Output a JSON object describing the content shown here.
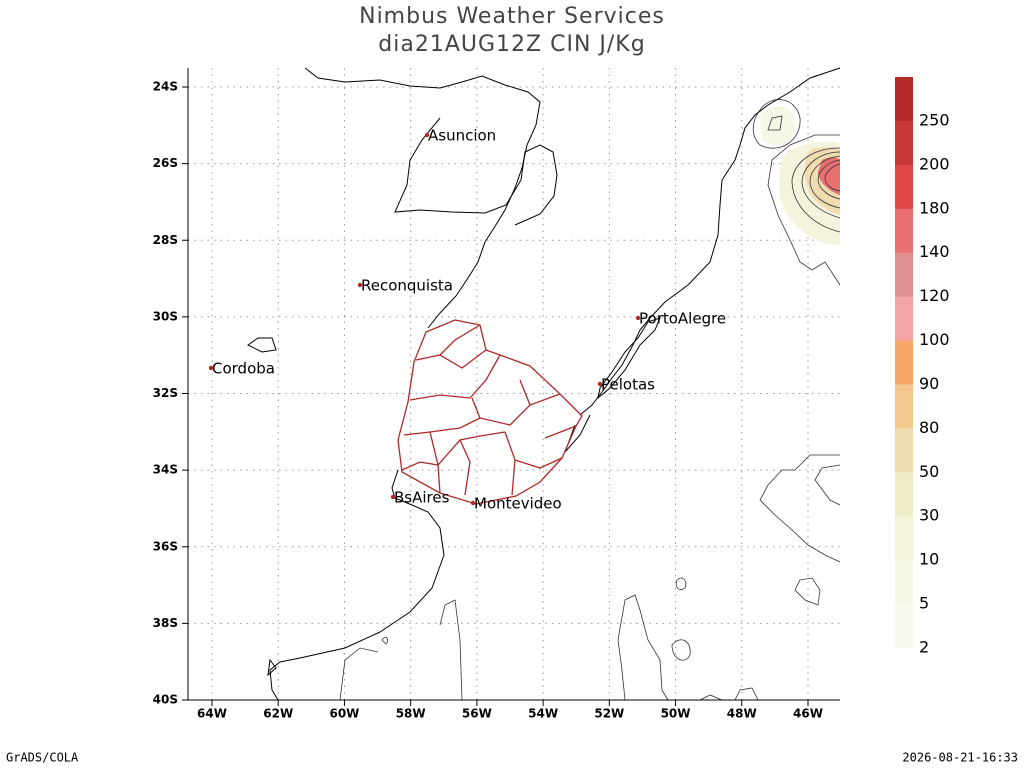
{
  "header": {
    "title": "Nimbus Weather Services",
    "subtitle": "dia21AUG12Z CIN J/Kg"
  },
  "map": {
    "lat_labels": [
      "24S",
      "26S",
      "28S",
      "30S",
      "32S",
      "34S",
      "36S",
      "38S",
      "40S"
    ],
    "lon_labels": [
      "64W",
      "62W",
      "60W",
      "58W",
      "56W",
      "54W",
      "52W",
      "50W",
      "48W",
      "46W"
    ],
    "cities": [
      "Asuncion",
      "Reconquista",
      "PortoAlegre",
      "Cordoba",
      "Pelotas",
      "BsAires",
      "Montevideo"
    ]
  },
  "colorbar": {
    "labels": [
      "250",
      "200",
      "180",
      "140",
      "120",
      "100",
      "90",
      "80",
      "50",
      "30",
      "10",
      "5",
      "2"
    ],
    "colors": [
      "#b22a2a",
      "#c83838",
      "#e04848",
      "#e87070",
      "#e09090",
      "#f4a4a4",
      "#f8a868",
      "#f2c890",
      "#efdcb0",
      "#f0ecc8",
      "#f4f4dc",
      "#f6f8e6",
      "#f8faee"
    ]
  },
  "footer": {
    "left": "GrADS/COLA",
    "right": "2026-08-21-16:33"
  }
}
